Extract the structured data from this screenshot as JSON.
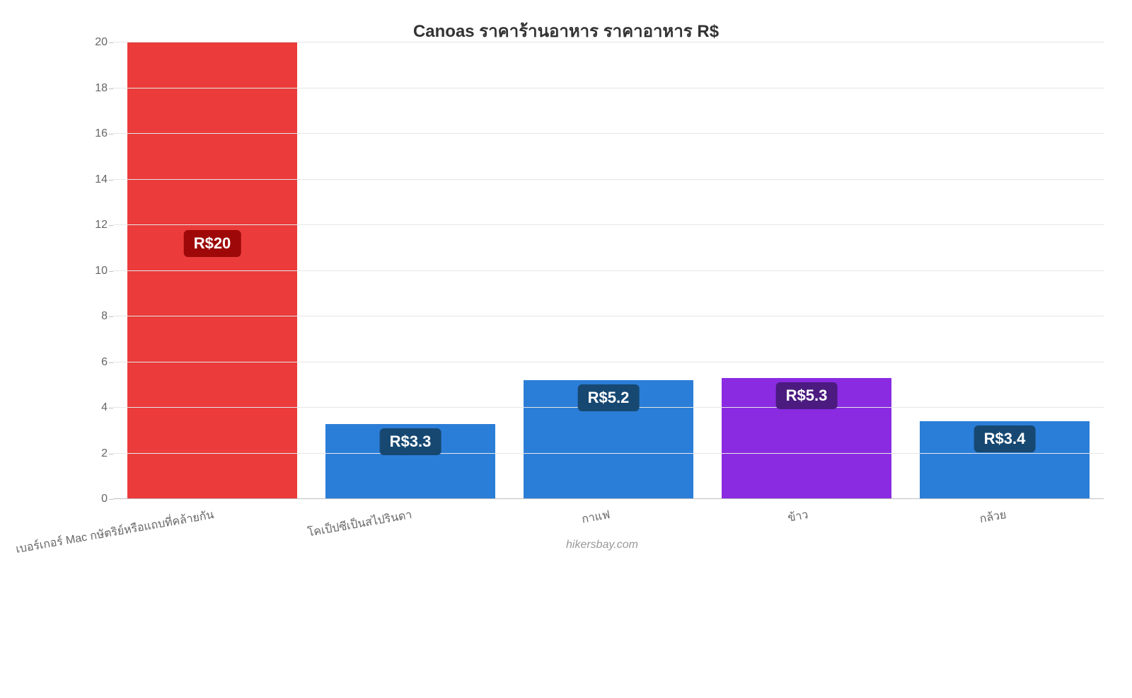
{
  "chart": {
    "type": "bar",
    "title": "Canoas ราคาร้านอาหาร ราคาอาหาร R$",
    "title_fontsize": 24,
    "title_color": "#333333",
    "background_color": "#ffffff",
    "grid_color": "#e6e6e6",
    "axis_color": "#bfbfbf",
    "categories": [
      "เบอร์เกอร์ Mac กษัตริย์หรือแถบที่คล้ายกัน",
      "โคเป็ปซีเป็นสไปรินดา",
      "กาแฟ",
      "ข้าว",
      "กล้วย"
    ],
    "values": [
      20,
      3.3,
      5.2,
      5.3,
      3.4
    ],
    "bar_colors": [
      "#eb3b3b",
      "#2b7ed8",
      "#2b7ed8",
      "#8a2be2",
      "#2b7ed8"
    ],
    "badge_labels": [
      "R$20",
      "R$3.3",
      "R$5.2",
      "R$5.3",
      "R$3.4"
    ],
    "badge_bg_colors": [
      "#9e0808",
      "#164872",
      "#164872",
      "#4b1b80",
      "#164872"
    ],
    "badge_text_color": "#ffffff",
    "badge_fontsize": 22,
    "ylim": [
      0,
      20
    ],
    "ytick_step": 2,
    "ytick_fontsize": 16,
    "xtick_fontsize": 16,
    "xtick_rotation_deg": 10,
    "xlabel_color": "#666666",
    "bar_width_ratio": 0.86,
    "watermark": "hikersbay.com",
    "watermark_color": "#999999",
    "watermark_fontsize": 16
  }
}
